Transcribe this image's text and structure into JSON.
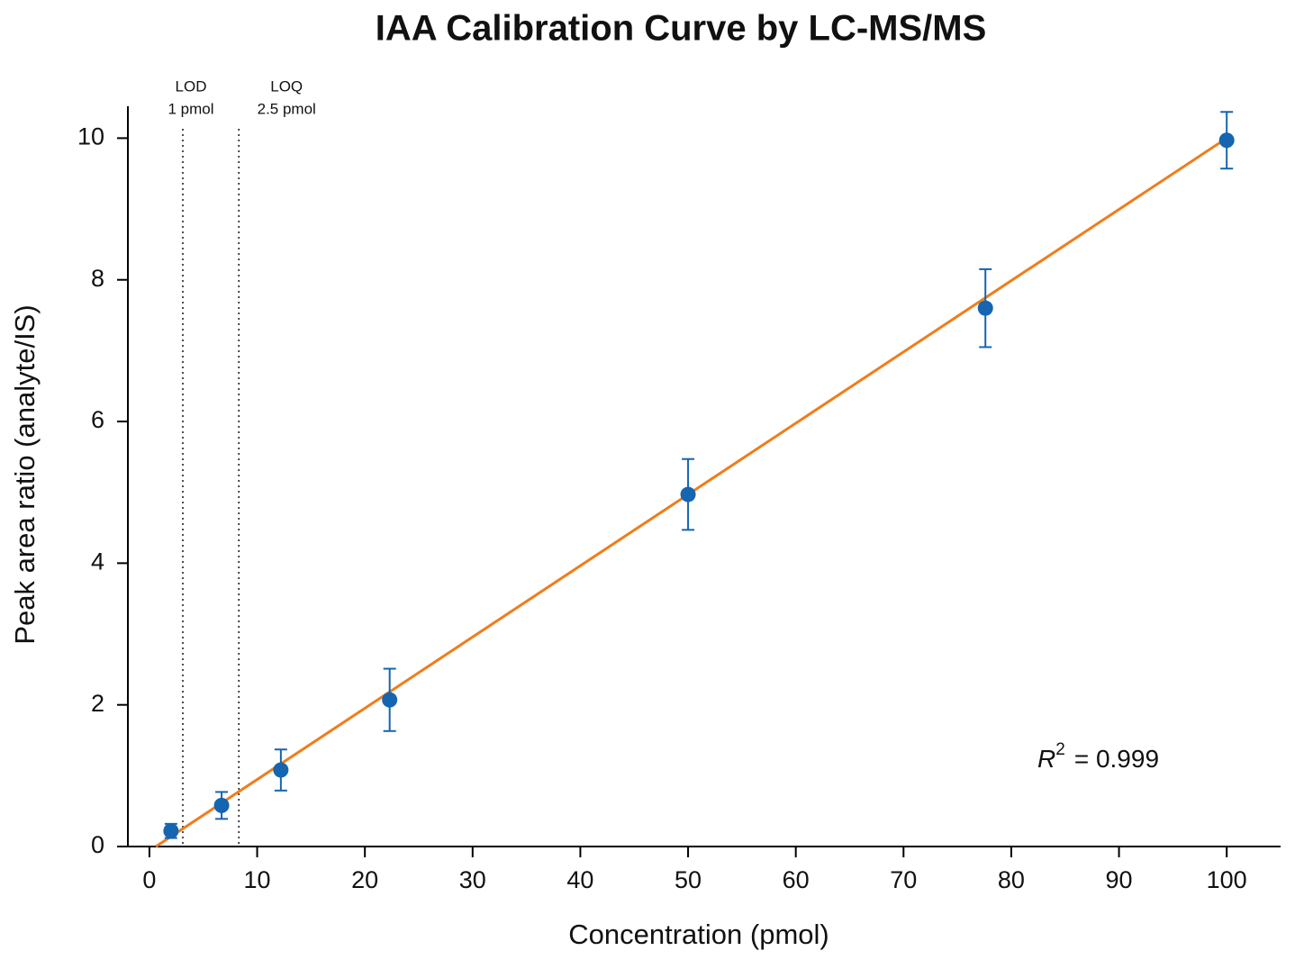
{
  "chart_data": {
    "type": "errorbar-scatter",
    "title": "IAA Calibration Curve by LC-MS/MS",
    "x_label": "Concentration (pmol)",
    "y_label": "Peak area ratio (analyte/IS)",
    "x": [
      2,
      6.7,
      12.2,
      22.3,
      50,
      77.6,
      100
    ],
    "values": [
      0.22,
      0.58,
      1.08,
      2.07,
      4.97,
      7.6,
      9.97
    ],
    "errors": [
      0.1,
      0.19,
      0.29,
      0.44,
      0.5,
      0.55,
      0.4
    ],
    "color": "#1565b0",
    "fit": {
      "x": [
        0.6,
        100
      ],
      "y": [
        0,
        10
      ],
      "color": "#f07d1a"
    },
    "limits": [
      {
        "name": "LOD",
        "text": "1 pmol",
        "x": 3.1
      },
      {
        "name": "LOQ",
        "text": "2.5 pmol",
        "x": 8.3
      }
    ],
    "annotation": {
      "symbol": "R",
      "power": "2",
      "text": "= 0.999"
    },
    "xlim": [
      -2,
      105
    ],
    "ylim": [
      0,
      10.45
    ],
    "xticks": [
      0,
      10,
      20,
      30,
      40,
      50,
      60,
      70,
      80,
      90,
      100
    ],
    "yticks": [
      0,
      2,
      4,
      6,
      8,
      10
    ]
  }
}
